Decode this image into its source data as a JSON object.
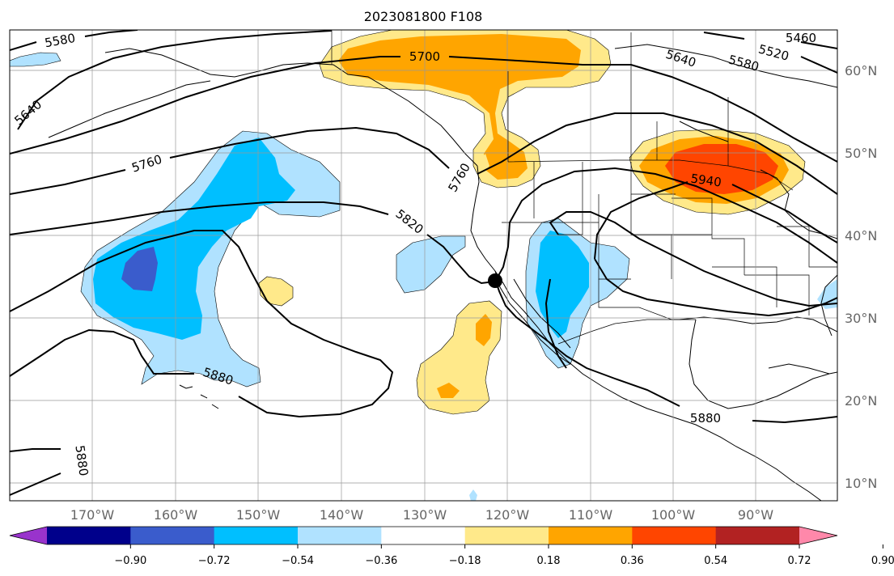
{
  "title": "2023081800 F108",
  "lon_labels": [
    "170°W",
    "160°W",
    "150°W",
    "140°W",
    "130°W",
    "120°W",
    "110°W",
    "100°W",
    "90°W"
  ],
  "lat_labels": [
    "60°N",
    "50°N",
    "40°N",
    "30°N",
    "20°N",
    "10°N"
  ],
  "contour_labels": [
    "5580",
    "5460",
    "5520",
    "5580",
    "5640",
    "5700",
    "5640",
    "5760",
    "5760",
    "5820",
    "5880",
    "5880",
    "5940",
    "5880"
  ],
  "colorbar": {
    "tick_labels": [
      "−0.90",
      "−0.72",
      "−0.54",
      "−0.36",
      "−0.18",
      "0.18",
      "0.36",
      "0.54",
      "0.72",
      "0.90"
    ],
    "colors": [
      "#9933cc",
      "#00008b",
      "#3a5ccc",
      "#00bfff",
      "#b0e2ff",
      "#ffffff",
      "#ffe98a",
      "#ffa500",
      "#ff4500",
      "#b22222",
      "#ff88aa"
    ]
  }
}
